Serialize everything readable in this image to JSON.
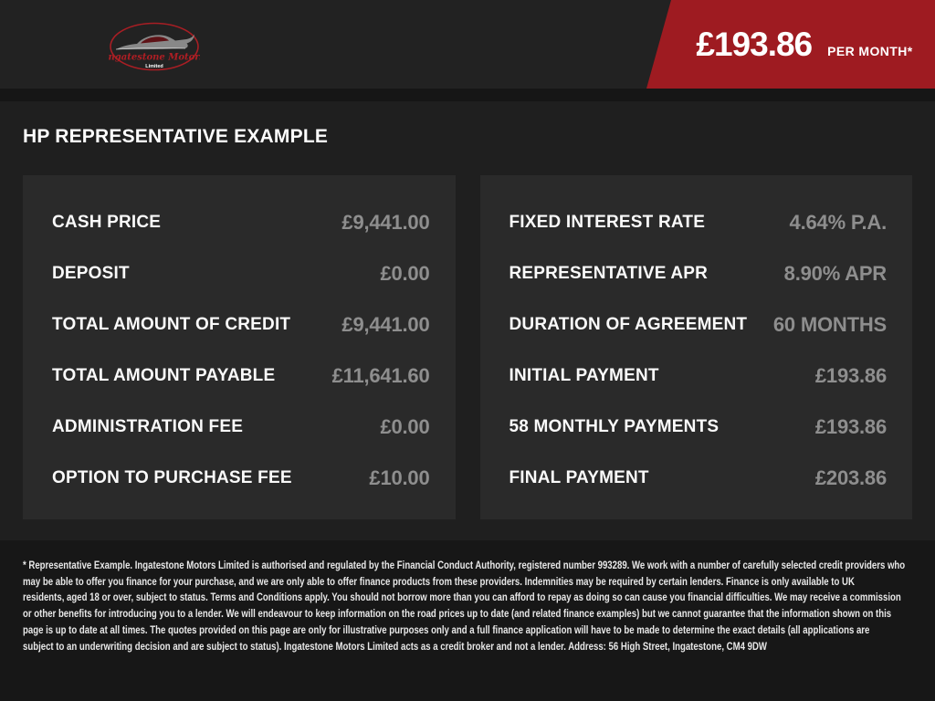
{
  "header": {
    "logo": {
      "name": "Ingatestone Motors",
      "subtitle": "Limited"
    },
    "price_banner": {
      "amount": "£193.86",
      "per": "PER MONTH*"
    }
  },
  "page_title": "HP REPRESENTATIVE EXAMPLE",
  "finance": {
    "left_rows": [
      {
        "label": "CASH PRICE",
        "value": "£9,441.00"
      },
      {
        "label": "DEPOSIT",
        "value": "£0.00"
      },
      {
        "label": "TOTAL AMOUNT OF CREDIT",
        "value": "£9,441.00"
      },
      {
        "label": "TOTAL AMOUNT PAYABLE",
        "value": "£11,641.60"
      },
      {
        "label": "ADMINISTRATION FEE",
        "value": "£0.00"
      },
      {
        "label": "OPTION TO PURCHASE FEE",
        "value": "£10.00"
      }
    ],
    "right_rows": [
      {
        "label": "FIXED INTEREST RATE",
        "value": "4.64% P.A."
      },
      {
        "label": "REPRESENTATIVE APR",
        "value": "8.90% APR"
      },
      {
        "label": "DURATION OF AGREEMENT",
        "value": "60 MONTHS"
      },
      {
        "label": "INITIAL PAYMENT",
        "value": "£193.86"
      },
      {
        "label": "58 MONTHLY PAYMENTS",
        "value": "£193.86"
      },
      {
        "label": "FINAL PAYMENT",
        "value": "£203.86"
      }
    ]
  },
  "footer": {
    "lines": [
      "* Representative Example. Ingatestone Motors Limited is authorised and regulated by the Financial Conduct Authority, registered number 993289. We work with a number of carefully selected credit providers who",
      "may be able to offer you finance for your purchase, and we are only able to offer finance products from these providers. Indemnities may be required by certain lenders. Finance is only available to UK",
      "residents, aged 18 or over, subject to status. Terms and Conditions apply. You should not borrow more than you can afford to repay as doing so can cause you financial difficulties. We may receive a commission",
      "or other benefits for introducing you to a lender. We will endeavour to keep information on the road prices up to date (and related finance examples) but we cannot guarantee that the information shown on this",
      "page is up to date at all times. The quotes provided on this page are only for illustrative purposes only and a full finance application will have to be made to determine the exact details (all applications are",
      "subject to an underwriting decision and are subject to status). Ingatestone Motors Limited acts as a credit broker and not a lender. Address: 56 High Street, Ingatestone, CM4 9DW"
    ]
  },
  "colors": {
    "banner_red": "#9e1b21",
    "logo_red": "#b01e24",
    "panel_bg": "#2a2a2a",
    "value_gray": "#8e8e8e",
    "header_bg": "#222222",
    "footer_bg": "#171717"
  }
}
